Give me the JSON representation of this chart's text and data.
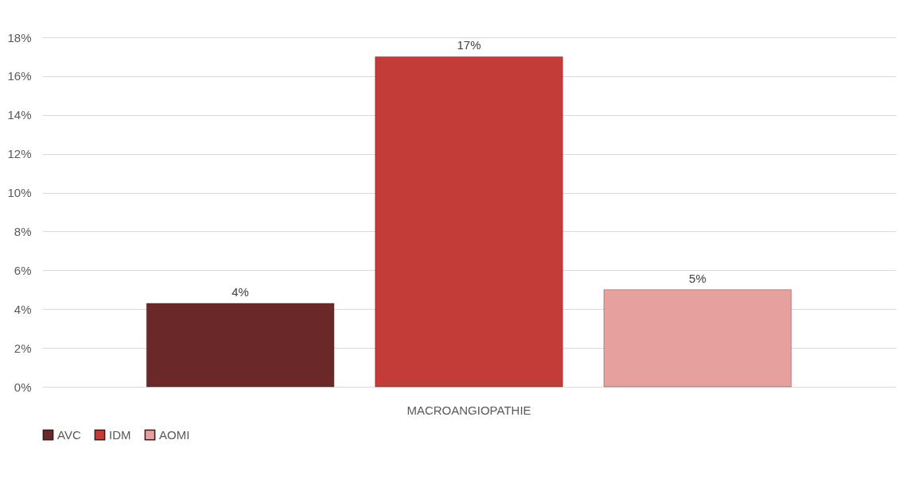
{
  "chart_data": {
    "type": "bar",
    "categories": [
      "MACROANGIOPATHIE"
    ],
    "series": [
      {
        "name": "AVC",
        "color": "#6b2828",
        "values": [
          4.3
        ],
        "value_labels": [
          "4%"
        ]
      },
      {
        "name": "IDM",
        "color": "#c43c38",
        "values": [
          17
        ],
        "value_labels": [
          "17%"
        ]
      },
      {
        "name": "AOMI",
        "color": "#e6a09e",
        "values": [
          5
        ],
        "value_labels": [
          "5%"
        ]
      }
    ],
    "ylim": [
      0,
      18
    ],
    "yticks": [
      {
        "value": 0,
        "label": "0%"
      },
      {
        "value": 2,
        "label": "2%"
      },
      {
        "value": 4,
        "label": "4%"
      },
      {
        "value": 6,
        "label": "6%"
      },
      {
        "value": 8,
        "label": "8%"
      },
      {
        "value": 10,
        "label": "10%"
      },
      {
        "value": 12,
        "label": "12%"
      },
      {
        "value": 14,
        "label": "14%"
      },
      {
        "value": 16,
        "label": "16%"
      },
      {
        "value": 18,
        "label": "18%"
      }
    ],
    "grid": "y",
    "legend": "bottom"
  }
}
